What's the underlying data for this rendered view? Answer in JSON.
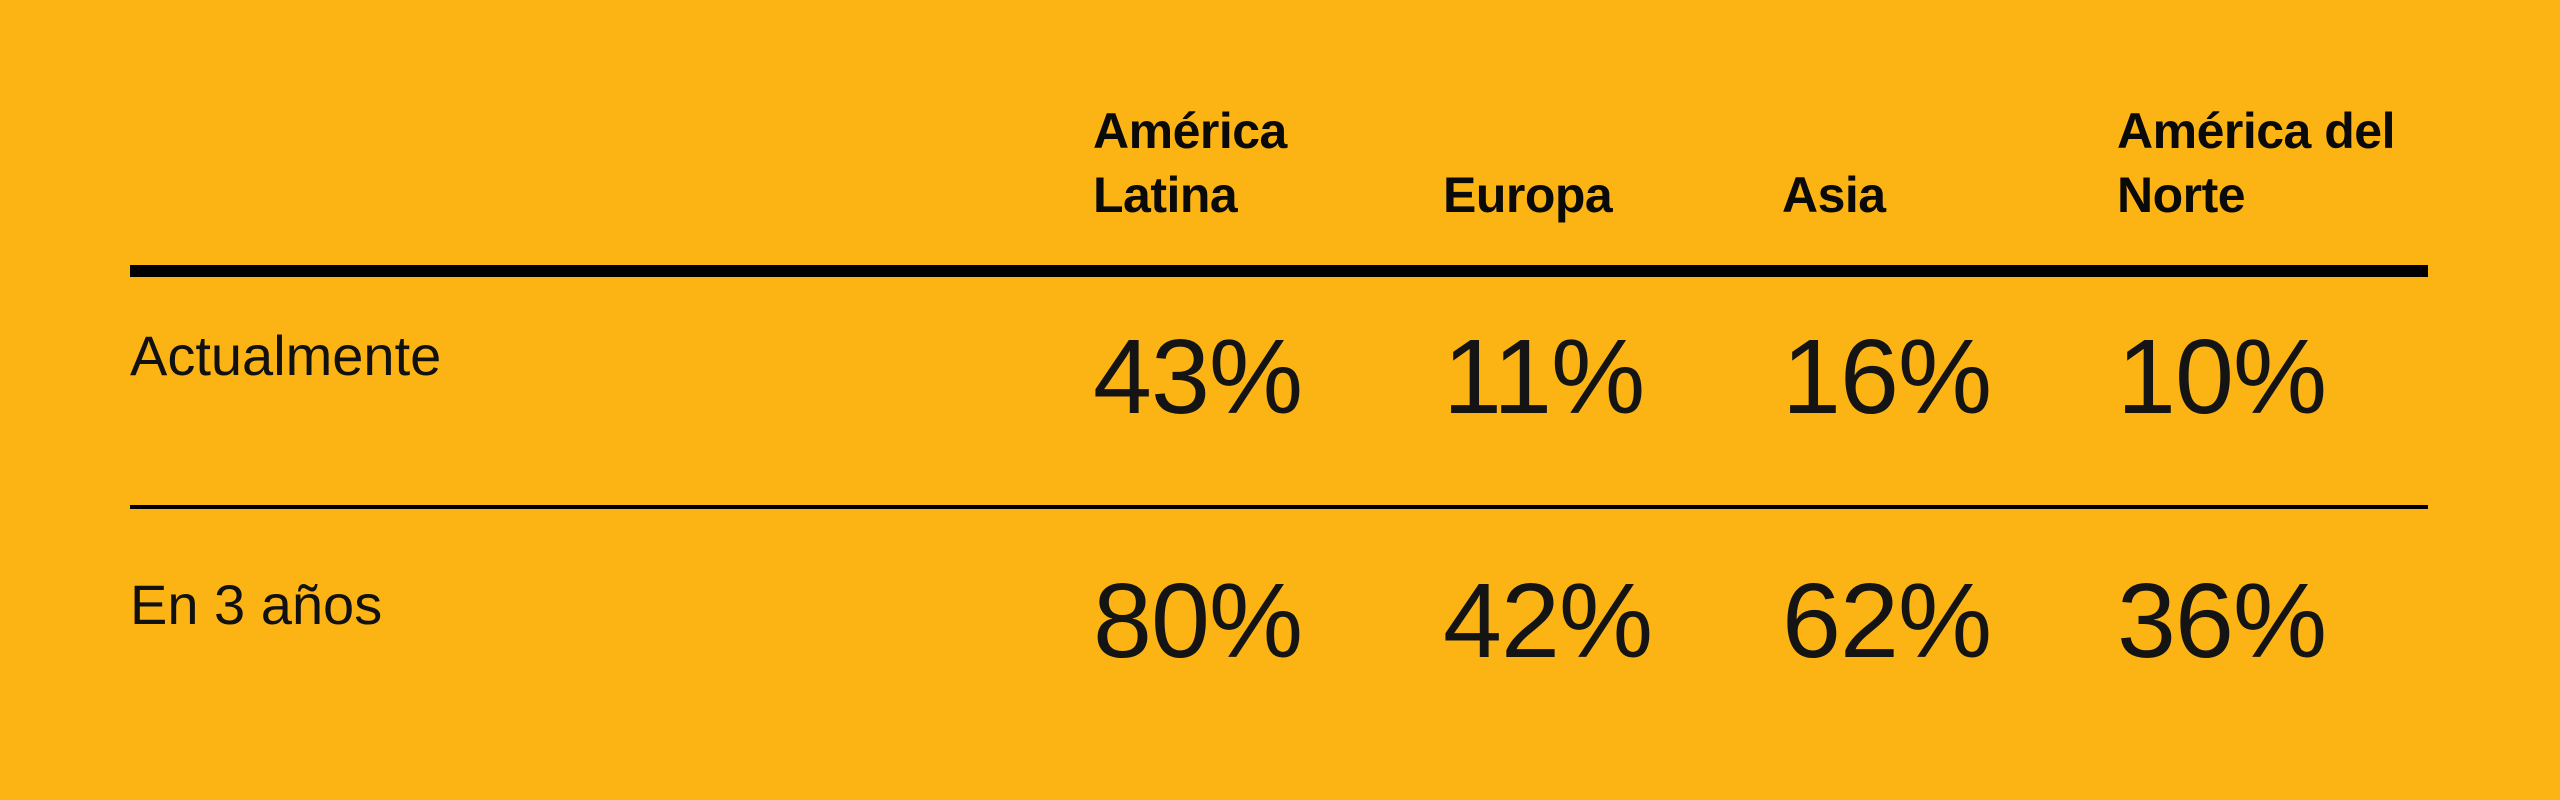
{
  "page": {
    "background_color": "#FCB415",
    "text_color": "#0D0D0D",
    "rule_color": "#000000"
  },
  "table": {
    "columns": [
      {
        "label": "América Latina"
      },
      {
        "label": "Europa"
      },
      {
        "label": "Asia"
      },
      {
        "label": "América del Norte"
      }
    ],
    "rows": [
      {
        "label": "Actualmente",
        "values": [
          "43%",
          "11%",
          "16%",
          "10%"
        ]
      },
      {
        "label": "En 3 años",
        "values": [
          "80%",
          "42%",
          "62%",
          "36%"
        ]
      }
    ]
  },
  "chart_data": {
    "type": "table",
    "categories": [
      "América Latina",
      "Europa",
      "Asia",
      "América del Norte"
    ],
    "series": [
      {
        "name": "Actualmente",
        "values": [
          43,
          11,
          16,
          10
        ]
      },
      {
        "name": "En 3 años",
        "values": [
          80,
          42,
          62,
          36
        ]
      }
    ],
    "unit": "%",
    "layout_hints": {
      "row_labels_column": "left",
      "values_alignment": "left",
      "header_rule": "thick",
      "row_separator_rule": "thin"
    }
  }
}
